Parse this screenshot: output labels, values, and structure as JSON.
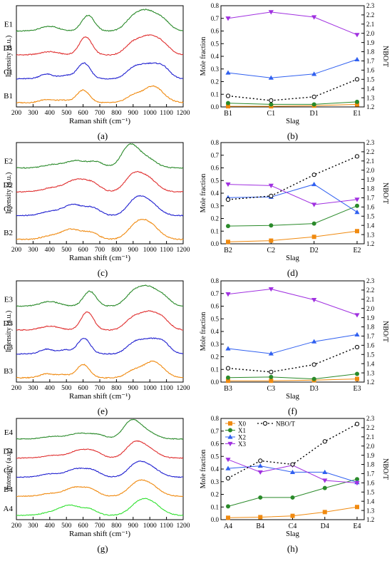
{
  "chart_data": [
    {
      "type": "line",
      "panel_label": "(a)",
      "xlabel": "Raman shift (cm⁻¹)",
      "ylabel": "Intensity (a.u.)",
      "xlim": [
        200,
        1200
      ],
      "xticks": [
        "200",
        "300",
        "400",
        "500",
        "600",
        "700",
        "800",
        "900",
        "1000",
        "1100",
        "1200"
      ],
      "series": [
        {
          "name": "E1",
          "color": "#2a8a2a",
          "peaks": [
            [
              400,
              0.3,
              55
            ],
            [
              630,
              1.0,
              38
            ],
            [
              890,
              0.55,
              45
            ],
            [
              980,
              1.25,
              60
            ],
            [
              1080,
              0.55,
              45
            ]
          ]
        },
        {
          "name": "D1",
          "color": "#e03030",
          "peaks": [
            [
              400,
              0.2,
              55
            ],
            [
              615,
              1.15,
              38
            ],
            [
              890,
              0.55,
              45
            ],
            [
              990,
              1.15,
              60
            ],
            [
              1080,
              0.5,
              45
            ]
          ]
        },
        {
          "name": "C1",
          "color": "#2020d0",
          "peaks": [
            [
              380,
              0.3,
              40
            ],
            [
              500,
              0.2,
              40
            ],
            [
              605,
              1.0,
              38
            ],
            [
              900,
              0.55,
              45
            ],
            [
              1000,
              0.9,
              60
            ],
            [
              1085,
              0.5,
              40
            ]
          ]
        },
        {
          "name": "B1",
          "color": "#f08a10",
          "peaks": [
            [
              380,
              0.2,
              40
            ],
            [
              480,
              0.15,
              40
            ],
            [
              600,
              0.8,
              38
            ],
            [
              900,
              0.4,
              45
            ],
            [
              1020,
              1.05,
              60
            ]
          ]
        }
      ]
    },
    {
      "type": "line",
      "panel_label": "(b)",
      "xlabel": "Slag",
      "ylabel": "Mole fraction",
      "y2label": "NBO/T",
      "categories": [
        "B1",
        "C1",
        "D1",
        "E1"
      ],
      "ylim": [
        0,
        0.8
      ],
      "y2lim": [
        1.2,
        2.3
      ],
      "series": [
        {
          "name": "X0",
          "color": "#f08a10",
          "marker": "square",
          "values": [
            0.005,
            0.005,
            0.01,
            0.02
          ]
        },
        {
          "name": "X1",
          "color": "#2a8a2a",
          "marker": "circle",
          "values": [
            0.03,
            0.02,
            0.02,
            0.04
          ]
        },
        {
          "name": "X2",
          "color": "#3060f0",
          "marker": "triangle-up",
          "values": [
            0.27,
            0.23,
            0.26,
            0.375
          ]
        },
        {
          "name": "X3",
          "color": "#a030e0",
          "marker": "triangle-down",
          "values": [
            0.7,
            0.75,
            0.71,
            0.57
          ]
        },
        {
          "name": "NBO/T",
          "color": "#000000",
          "marker": "open-circle",
          "dashed": true,
          "axis": "right",
          "values": [
            1.32,
            1.27,
            1.31,
            1.5
          ]
        }
      ]
    },
    {
      "type": "line",
      "panel_label": "(c)",
      "xlabel": "Raman shift (cm⁻¹)",
      "ylabel": "Intensity (a.u.)",
      "xlim": [
        200,
        1200
      ],
      "xticks": [
        "200",
        "300",
        "400",
        "500",
        "600",
        "700",
        "800",
        "900",
        "1000",
        "1100",
        "1200"
      ],
      "series": [
        {
          "name": "E2",
          "color": "#2a8a2a",
          "peaks": [
            [
              420,
              0.2,
              60
            ],
            [
              560,
              0.45,
              60
            ],
            [
              680,
              0.35,
              45
            ],
            [
              880,
              1.4,
              50
            ],
            [
              980,
              0.6,
              55
            ]
          ]
        },
        {
          "name": "D2",
          "color": "#e03030",
          "peaks": [
            [
              420,
              0.25,
              60
            ],
            [
              560,
              0.75,
              60
            ],
            [
              660,
              0.45,
              45
            ],
            [
              900,
              1.0,
              50
            ],
            [
              990,
              0.8,
              55
            ]
          ]
        },
        {
          "name": "C2",
          "color": "#2020d0",
          "peaks": [
            [
              400,
              0.25,
              55
            ],
            [
              540,
              0.7,
              60
            ],
            [
              660,
              0.45,
              45
            ],
            [
              910,
              0.8,
              50
            ],
            [
              990,
              0.85,
              60
            ]
          ]
        },
        {
          "name": "B2",
          "color": "#f08a10",
          "peaks": [
            [
              400,
              0.2,
              55
            ],
            [
              530,
              0.65,
              60
            ],
            [
              650,
              0.4,
              45
            ],
            [
              920,
              0.8,
              55
            ],
            [
              1000,
              0.85,
              60
            ]
          ]
        }
      ]
    },
    {
      "type": "line",
      "panel_label": "(d)",
      "xlabel": "Slag",
      "ylabel": "Mole fraction",
      "y2label": "NBO/T",
      "categories": [
        "B2",
        "C2",
        "D2",
        "E2"
      ],
      "ylim": [
        0,
        0.8
      ],
      "y2lim": [
        1.2,
        2.3
      ],
      "series": [
        {
          "name": "X0",
          "color": "#f08a10",
          "marker": "square",
          "values": [
            0.015,
            0.025,
            0.055,
            0.1
          ]
        },
        {
          "name": "X1",
          "color": "#2a8a2a",
          "marker": "circle",
          "values": [
            0.14,
            0.145,
            0.16,
            0.3
          ]
        },
        {
          "name": "X2",
          "color": "#3060f0",
          "marker": "triangle-up",
          "values": [
            0.365,
            0.37,
            0.47,
            0.25
          ]
        },
        {
          "name": "X3",
          "color": "#a030e0",
          "marker": "triangle-down",
          "values": [
            0.47,
            0.46,
            0.31,
            0.35
          ]
        },
        {
          "name": "NBO/T",
          "color": "#000000",
          "marker": "open-circle",
          "dashed": true,
          "axis": "right",
          "values": [
            1.68,
            1.72,
            1.95,
            2.15
          ]
        }
      ]
    },
    {
      "type": "line",
      "panel_label": "(e)",
      "xlabel": "Raman shift (cm⁻¹)",
      "ylabel": "Intensity (a.u.)",
      "xlim": [
        200,
        1200
      ],
      "xticks": [
        "200",
        "300",
        "400",
        "500",
        "600",
        "700",
        "800",
        "900",
        "1000",
        "1100",
        "1200"
      ],
      "series": [
        {
          "name": "E3",
          "color": "#2a8a2a",
          "peaks": [
            [
              400,
              0.3,
              55
            ],
            [
              640,
              0.95,
              38
            ],
            [
              890,
              0.55,
              45
            ],
            [
              980,
              1.2,
              60
            ],
            [
              1080,
              0.5,
              45
            ]
          ]
        },
        {
          "name": "D3",
          "color": "#e03030",
          "peaks": [
            [
              400,
              0.25,
              55
            ],
            [
              625,
              1.15,
              38
            ],
            [
              890,
              0.55,
              45
            ],
            [
              990,
              1.1,
              60
            ],
            [
              1080,
              0.5,
              45
            ]
          ]
        },
        {
          "name": "C3",
          "color": "#2020d0",
          "peaks": [
            [
              380,
              0.3,
              40
            ],
            [
              490,
              0.25,
              40
            ],
            [
              605,
              1.0,
              38
            ],
            [
              900,
              0.55,
              45
            ],
            [
              1000,
              0.9,
              60
            ],
            [
              1085,
              0.5,
              40
            ]
          ]
        },
        {
          "name": "B3",
          "color": "#f08a10",
          "peaks": [
            [
              380,
              0.25,
              40
            ],
            [
              480,
              0.2,
              40
            ],
            [
              600,
              0.85,
              38
            ],
            [
              900,
              0.4,
              45
            ],
            [
              1020,
              1.05,
              60
            ]
          ]
        }
      ]
    },
    {
      "type": "line",
      "panel_label": "(f)",
      "xlabel": "Slag",
      "ylabel": "Mole fraction",
      "y2label": "NBO/T",
      "categories": [
        "B3",
        "C3",
        "D3",
        "E3"
      ],
      "ylim": [
        0,
        0.8
      ],
      "y2lim": [
        1.2,
        2.3
      ],
      "series": [
        {
          "name": "X0",
          "color": "#f08a10",
          "marker": "square",
          "values": [
            0.01,
            0.01,
            0.015,
            0.025
          ]
        },
        {
          "name": "X1",
          "color": "#2a8a2a",
          "marker": "circle",
          "values": [
            0.035,
            0.04,
            0.025,
            0.065
          ]
        },
        {
          "name": "X2",
          "color": "#3060f0",
          "marker": "triangle-up",
          "values": [
            0.265,
            0.225,
            0.32,
            0.375
          ]
        },
        {
          "name": "X3",
          "color": "#a030e0",
          "marker": "triangle-down",
          "values": [
            0.695,
            0.735,
            0.65,
            0.53
          ]
        },
        {
          "name": "NBO/T",
          "color": "#000000",
          "marker": "open-circle",
          "dashed": true,
          "axis": "right",
          "values": [
            1.35,
            1.31,
            1.39,
            1.58
          ]
        }
      ]
    },
    {
      "type": "line",
      "panel_label": "(g)",
      "xlabel": "Raman shift (cm⁻¹)",
      "ylabel": "Intensity (a.u.)",
      "xlim": [
        200,
        1200
      ],
      "xticks": [
        "200",
        "300",
        "400",
        "500",
        "600",
        "700",
        "800",
        "900",
        "1000",
        "1100",
        "1200"
      ],
      "series": [
        {
          "name": "E4",
          "color": "#2a8a2a",
          "peaks": [
            [
              420,
              0.2,
              60
            ],
            [
              580,
              0.45,
              60
            ],
            [
              690,
              0.3,
              45
            ],
            [
              890,
              1.4,
              50
            ],
            [
              980,
              0.55,
              55
            ]
          ]
        },
        {
          "name": "D4",
          "color": "#e03030",
          "peaks": [
            [
              420,
              0.2,
              60
            ],
            [
              580,
              0.6,
              60
            ],
            [
              670,
              0.4,
              45
            ],
            [
              905,
              1.1,
              50
            ],
            [
              990,
              0.7,
              55
            ]
          ]
        },
        {
          "name": "C4",
          "color": "#2020d0",
          "peaks": [
            [
              400,
              0.25,
              55
            ],
            [
              560,
              0.65,
              60
            ],
            [
              660,
              0.45,
              45
            ],
            [
              915,
              0.85,
              50
            ],
            [
              995,
              0.8,
              60
            ]
          ]
        },
        {
          "name": "B4",
          "color": "#f08a10",
          "peaks": [
            [
              400,
              0.2,
              55
            ],
            [
              550,
              0.7,
              60
            ],
            [
              650,
              0.45,
              45
            ],
            [
              920,
              0.85,
              55
            ],
            [
              1000,
              0.8,
              60
            ]
          ]
        },
        {
          "name": "A4",
          "color": "#30e030",
          "peaks": [
            [
              400,
              0.2,
              55
            ],
            [
              520,
              0.8,
              60
            ],
            [
              640,
              0.45,
              45
            ],
            [
              930,
              0.8,
              55
            ],
            [
              1010,
              0.9,
              60
            ]
          ]
        }
      ]
    },
    {
      "type": "line",
      "panel_label": "(h)",
      "xlabel": "Slag",
      "ylabel": "Mole fraction",
      "y2label": "NBO/T",
      "categories": [
        "A4",
        "B4",
        "C4",
        "D4",
        "E4"
      ],
      "ylim": [
        0,
        0.8
      ],
      "y2lim": [
        1.2,
        2.3
      ],
      "legend": "top-left",
      "series": [
        {
          "name": "X0",
          "color": "#f08a10",
          "marker": "square",
          "values": [
            0.015,
            0.02,
            0.03,
            0.06,
            0.1
          ]
        },
        {
          "name": "X1",
          "color": "#2a8a2a",
          "marker": "circle",
          "values": [
            0.105,
            0.175,
            0.175,
            0.25,
            0.32
          ]
        },
        {
          "name": "X2",
          "color": "#3060f0",
          "marker": "triangle-up",
          "values": [
            0.405,
            0.425,
            0.375,
            0.375,
            0.295
          ]
        },
        {
          "name": "X3",
          "color": "#a030e0",
          "marker": "triangle-down",
          "values": [
            0.475,
            0.375,
            0.43,
            0.31,
            0.29
          ]
        },
        {
          "name": "NBO/T",
          "color": "#000000",
          "marker": "open-circle",
          "dashed": true,
          "axis": "right",
          "values": [
            1.65,
            1.84,
            1.8,
            2.05,
            2.24
          ]
        }
      ]
    }
  ]
}
